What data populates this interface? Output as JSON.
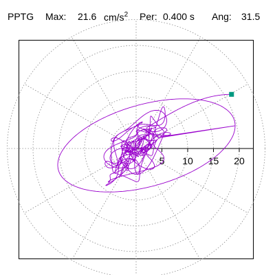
{
  "header": {
    "label": "PPTG",
    "max_label": "Max:",
    "max_value": "21.6",
    "max_unit": "cm/s",
    "max_unit_exp": "2",
    "per_label": "Per:",
    "per_value": "0.400 s",
    "ang_label": "Ang:",
    "ang_value": "31.5"
  },
  "chart_data": {
    "type": "polar-orbit",
    "radial_ticks": [
      5,
      10,
      15,
      20
    ],
    "radial_tick_labels": [
      "5",
      "10",
      "15",
      "20"
    ],
    "r_max": 25,
    "grid": "dotted",
    "angle_divisions": 12,
    "orbit_color": "#9900cc",
    "marker": {
      "x": 18.5,
      "y": 10.5,
      "color": "#009980"
    },
    "peak": 21.6,
    "period_s": 0.4,
    "angle_deg": 31.5
  }
}
